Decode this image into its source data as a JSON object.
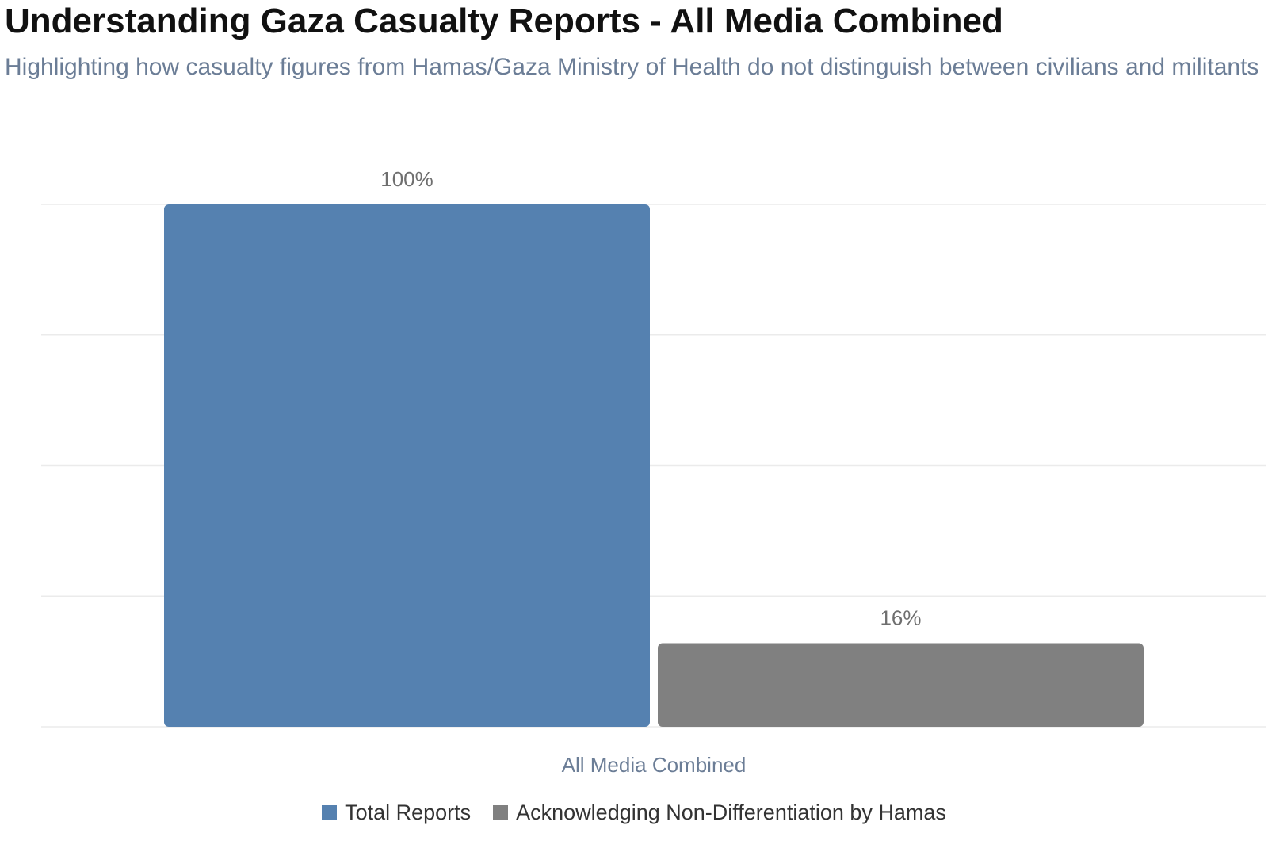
{
  "chart_data": {
    "type": "bar",
    "title": "Understanding Gaza Casualty Reports - All Media Combined",
    "subtitle": "Highlighting how casualty figures from Hamas/Gaza Ministry of Health do not distinguish between civilians and militants",
    "categories": [
      "All Media Combined"
    ],
    "series": [
      {
        "name": "Total Reports",
        "values": [
          100
        ],
        "value_labels": [
          "100%"
        ],
        "color": "#5581b0"
      },
      {
        "name": "Acknowledging Non-Differentiation by Hamas",
        "values": [
          16
        ],
        "value_labels": [
          "16%"
        ],
        "color": "#808080"
      }
    ],
    "ylim": [
      0,
      100
    ],
    "grid": true,
    "legend": "bottom-center"
  }
}
